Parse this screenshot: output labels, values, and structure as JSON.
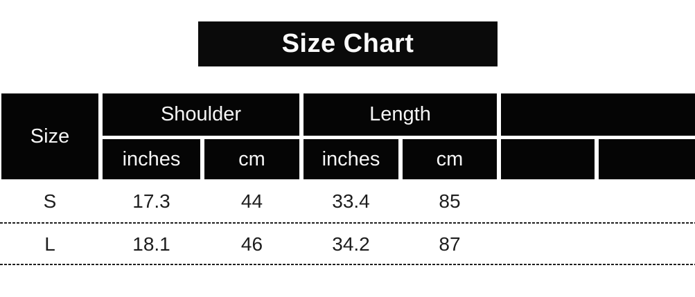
{
  "title": "Size Chart",
  "table": {
    "corner_label": "Size",
    "groups": [
      {
        "label": "Shoulder",
        "units": [
          "inches",
          "cm"
        ]
      },
      {
        "label": "Length",
        "units": [
          "inches",
          "cm"
        ]
      },
      {
        "label": "",
        "units": [
          "",
          ""
        ]
      }
    ],
    "rows": [
      {
        "size": "S",
        "values": [
          "17.3",
          "44",
          "33.4",
          "85",
          "",
          ""
        ]
      },
      {
        "size": "L",
        "values": [
          "18.1",
          "46",
          "34.2",
          "87",
          "",
          ""
        ]
      }
    ]
  },
  "colors": {
    "header_cell_bg": "#050505",
    "header_text": "#f5f5f5",
    "title_bg": "#0a0a0a",
    "title_text": "#fbfbfb",
    "body_text": "#1d1d1d",
    "page_bg": "#ffffff"
  },
  "chart_data": {
    "type": "table",
    "title": "Size Chart",
    "columns": [
      "Size",
      "Shoulder (inches)",
      "Shoulder (cm)",
      "Length (inches)",
      "Length (cm)"
    ],
    "rows": [
      [
        "S",
        17.3,
        44,
        33.4,
        85
      ],
      [
        "L",
        18.1,
        46,
        34.2,
        87
      ]
    ],
    "notes": "Two trailing blank columns are present in the rendered table with no header label or values."
  }
}
